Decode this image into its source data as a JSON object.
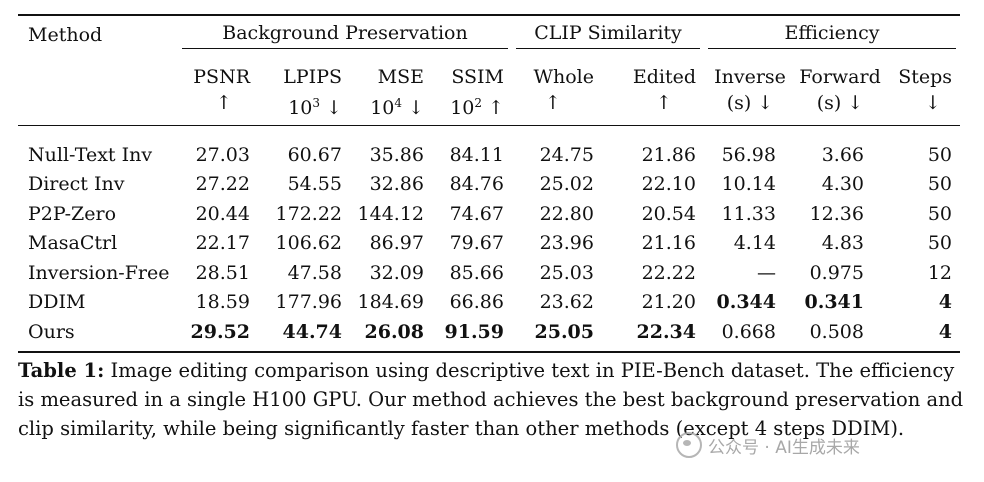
{
  "table": {
    "header": {
      "method_label": "Method",
      "groups": [
        "Background Preservation",
        "CLIP Similarity",
        "Efficiency"
      ],
      "metrics": [
        {
          "name": "PSNR",
          "scale": "",
          "arrow": "↑"
        },
        {
          "name": "LPIPS",
          "scale": "10",
          "exp": "3",
          "arrow": "↓"
        },
        {
          "name": "MSE",
          "scale": "10",
          "exp": "4",
          "arrow": "↓"
        },
        {
          "name": "SSIM",
          "scale": "10",
          "exp": "2",
          "arrow": "↑"
        },
        {
          "name": "Whole",
          "scale": "",
          "arrow": "↑"
        },
        {
          "name": "Edited",
          "scale": "",
          "arrow": "↑"
        },
        {
          "name": "Inverse",
          "unit": "(s)",
          "arrow": "↓"
        },
        {
          "name": "Forward",
          "unit": "(s)",
          "arrow": "↓"
        },
        {
          "name": "Steps",
          "unit": "",
          "arrow": "↓"
        }
      ]
    },
    "rows": [
      {
        "method": "Null-Text Inv",
        "values": [
          "27.03",
          "60.67",
          "35.86",
          "84.11",
          "24.75",
          "21.86",
          "56.98",
          "3.66",
          "50"
        ],
        "bold": []
      },
      {
        "method": "Direct Inv",
        "values": [
          "27.22",
          "54.55",
          "32.86",
          "84.76",
          "25.02",
          "22.10",
          "10.14",
          "4.30",
          "50"
        ],
        "bold": []
      },
      {
        "method": "P2P-Zero",
        "values": [
          "20.44",
          "172.22",
          "144.12",
          "74.67",
          "22.80",
          "20.54",
          "11.33",
          "12.36",
          "50"
        ],
        "bold": []
      },
      {
        "method": "MasaCtrl",
        "values": [
          "22.17",
          "106.62",
          "86.97",
          "79.67",
          "23.96",
          "21.16",
          "4.14",
          "4.83",
          "50"
        ],
        "bold": []
      },
      {
        "method": "Inversion-Free",
        "values": [
          "28.51",
          "47.58",
          "32.09",
          "85.66",
          "25.03",
          "22.22",
          "—",
          "0.975",
          "12"
        ],
        "bold": []
      },
      {
        "method": "DDIM",
        "values": [
          "18.59",
          "177.96",
          "184.69",
          "66.86",
          "23.62",
          "21.20",
          "0.344",
          "0.341",
          "4"
        ],
        "bold": [
          6,
          7,
          8
        ]
      },
      {
        "method": "Ours",
        "values": [
          "29.52",
          "44.74",
          "26.08",
          "91.59",
          "25.05",
          "22.34",
          "0.668",
          "0.508",
          "4"
        ],
        "bold": [
          0,
          1,
          2,
          3,
          4,
          5,
          8
        ]
      }
    ]
  },
  "caption": {
    "label": "Table 1:",
    "text": "Image editing comparison using descriptive text in PIE-Bench dataset. The efficiency is measured in a single H100 GPU. Our method achieves the best background preservation and clip similarity, while being significantly faster than other methods (except 4 steps DDIM)."
  },
  "watermark": {
    "text": "公众号 · AI生成未来",
    "icon": "wechat-icon"
  }
}
